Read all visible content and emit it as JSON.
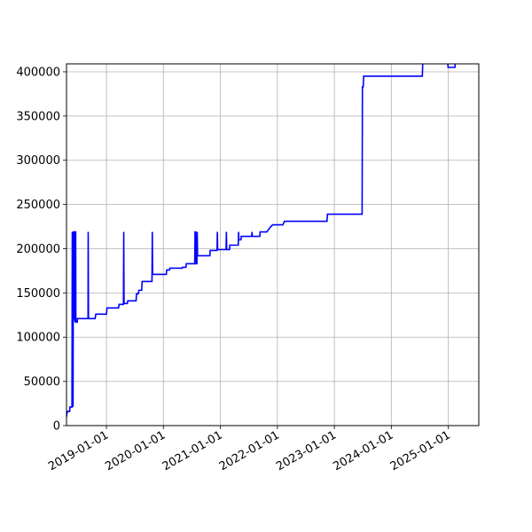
{
  "chart_data": {
    "type": "line",
    "title": "",
    "xlabel": "",
    "ylabel": "",
    "xlim": [
      "2018-04-20",
      "2025-07-15"
    ],
    "ylim": [
      0,
      409000
    ],
    "grid": true,
    "x_ticks": [
      "2019-01-01",
      "2020-01-01",
      "2021-01-01",
      "2022-01-01",
      "2023-01-01",
      "2024-01-01",
      "2025-01-01"
    ],
    "y_ticks": [
      "0",
      "50000",
      "100000",
      "150000",
      "200000",
      "250000",
      "300000",
      "350000",
      "400000"
    ],
    "colors": {
      "series": "#0000ff",
      "grid": "#b0b0b0",
      "axes": "#000000"
    },
    "series": [
      {
        "values": [
          [
            "2018-04-20",
            10000
          ],
          [
            "2018-04-25",
            16000
          ],
          [
            "2018-05-10",
            16000
          ],
          [
            "2018-05-12",
            21000
          ],
          [
            "2018-05-25",
            21000
          ],
          [
            "2018-05-27",
            219000
          ],
          [
            "2018-05-29",
            22000
          ],
          [
            "2018-06-01",
            22000
          ],
          [
            "2018-06-03",
            219000
          ],
          [
            "2018-06-06",
            219000
          ],
          [
            "2018-06-07",
            120000
          ],
          [
            "2018-06-09",
            219000
          ],
          [
            "2018-06-12",
            219000
          ],
          [
            "2018-06-13",
            117000
          ],
          [
            "2018-06-15",
            219000
          ],
          [
            "2018-06-18",
            219000
          ],
          [
            "2018-06-19",
            117000
          ],
          [
            "2018-06-28",
            117000
          ],
          [
            "2018-06-29",
            121000
          ],
          [
            "2018-09-05",
            121000
          ],
          [
            "2018-09-06",
            219000
          ],
          [
            "2018-09-08",
            121000
          ],
          [
            "2018-10-20",
            121000
          ],
          [
            "2018-10-25",
            126000
          ],
          [
            "2019-01-01",
            126000
          ],
          [
            "2019-01-05",
            133000
          ],
          [
            "2019-03-20",
            133000
          ],
          [
            "2019-03-23",
            137000
          ],
          [
            "2019-04-20",
            137000
          ],
          [
            "2019-04-22",
            219000
          ],
          [
            "2019-04-24",
            138000
          ],
          [
            "2019-05-15",
            138000
          ],
          [
            "2019-05-18",
            141000
          ],
          [
            "2019-07-10",
            141000
          ],
          [
            "2019-07-13",
            149000
          ],
          [
            "2019-07-25",
            149000
          ],
          [
            "2019-07-28",
            153000
          ],
          [
            "2019-08-15",
            153000
          ],
          [
            "2019-08-18",
            163000
          ],
          [
            "2019-10-20",
            163000
          ],
          [
            "2019-10-22",
            219000
          ],
          [
            "2019-10-24",
            171000
          ],
          [
            "2020-01-20",
            171000
          ],
          [
            "2020-01-22",
            176000
          ],
          [
            "2020-02-10",
            176000
          ],
          [
            "2020-02-12",
            178000
          ],
          [
            "2020-05-01",
            178000
          ],
          [
            "2020-05-03",
            179000
          ],
          [
            "2020-05-25",
            179000
          ],
          [
            "2020-05-27",
            183000
          ],
          [
            "2020-07-20",
            183000
          ],
          [
            "2020-07-22",
            219000
          ],
          [
            "2020-07-26",
            219000
          ],
          [
            "2020-07-28",
            183000
          ],
          [
            "2020-08-03",
            183000
          ],
          [
            "2020-08-05",
            219000
          ],
          [
            "2020-08-07",
            192000
          ],
          [
            "2020-10-25",
            192000
          ],
          [
            "2020-10-27",
            198000
          ],
          [
            "2020-12-10",
            198000
          ],
          [
            "2020-12-12",
            219000
          ],
          [
            "2020-12-14",
            199000
          ],
          [
            "2021-02-06",
            199000
          ],
          [
            "2021-02-08",
            219000
          ],
          [
            "2021-02-10",
            199000
          ],
          [
            "2021-02-28",
            199000
          ],
          [
            "2021-03-02",
            204000
          ],
          [
            "2021-04-25",
            204000
          ],
          [
            "2021-04-27",
            219000
          ],
          [
            "2021-04-29",
            210000
          ],
          [
            "2021-05-12",
            210000
          ],
          [
            "2021-05-14",
            214000
          ],
          [
            "2021-07-20",
            214000
          ],
          [
            "2021-07-22",
            219000
          ],
          [
            "2021-07-24",
            214000
          ],
          [
            "2021-09-10",
            214000
          ],
          [
            "2021-09-12",
            219000
          ],
          [
            "2021-10-25",
            219000
          ],
          [
            "2021-11-15",
            224000
          ],
          [
            "2021-12-01",
            227000
          ],
          [
            "2022-02-05",
            227000
          ],
          [
            "2022-02-15",
            231000
          ],
          [
            "2022-11-15",
            231000
          ],
          [
            "2022-11-18",
            239000
          ],
          [
            "2023-06-28",
            239000
          ],
          [
            "2023-06-30",
            383000
          ],
          [
            "2023-07-05",
            383000
          ],
          [
            "2023-07-08",
            395000
          ],
          [
            "2024-07-18",
            395000
          ],
          [
            "2024-07-21",
            412000
          ],
          [
            "2024-12-28",
            412000
          ],
          [
            "2024-12-30",
            405000
          ],
          [
            "2025-02-12",
            405000
          ],
          [
            "2025-02-15",
            412000
          ],
          [
            "2025-07-15",
            412000
          ]
        ]
      }
    ]
  }
}
